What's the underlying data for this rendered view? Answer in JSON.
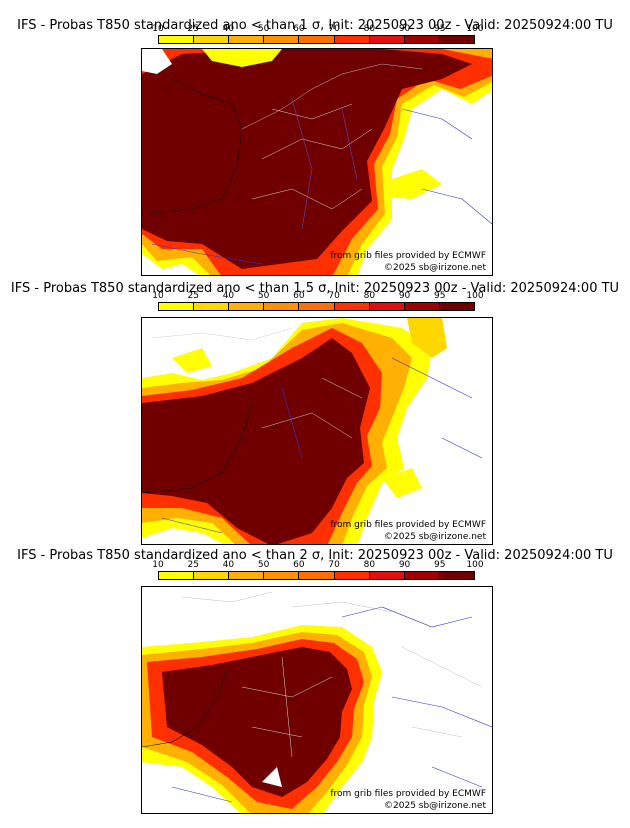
{
  "colorbar": {
    "ticks": [
      "10",
      "25",
      "40",
      "50",
      "60",
      "70",
      "80",
      "90",
      "95",
      "100"
    ],
    "colors": [
      "#ffff00",
      "#ffd700",
      "#ffb000",
      "#ff9000",
      "#ff7000",
      "#ff3000",
      "#e01010",
      "#a00000",
      "#700000"
    ]
  },
  "panels": [
    {
      "title": "IFS - Probas T850  standardized ano < than 1 σ, Init: 20250923 00z - Valid: 20250924:00 TU",
      "credit_source": "from grib files provided by ECMWF",
      "credit_copyright": "©2025 sb@irizone.net"
    },
    {
      "title": "IFS - Probas T850  standardized ano < than 1.5 σ, Init: 20250923 00z - Valid: 20250924:00 TU",
      "credit_source": "from grib files provided by ECMWF",
      "credit_copyright": "©2025 sb@irizone.net"
    },
    {
      "title": "IFS - Probas T850  standardized ano < than 2 σ, Init: 20250923 00z - Valid: 20250924:00 TU",
      "credit_source": "from grib files provided by ECMWF",
      "credit_copyright": "©2025 sb@irizone.net"
    }
  ]
}
